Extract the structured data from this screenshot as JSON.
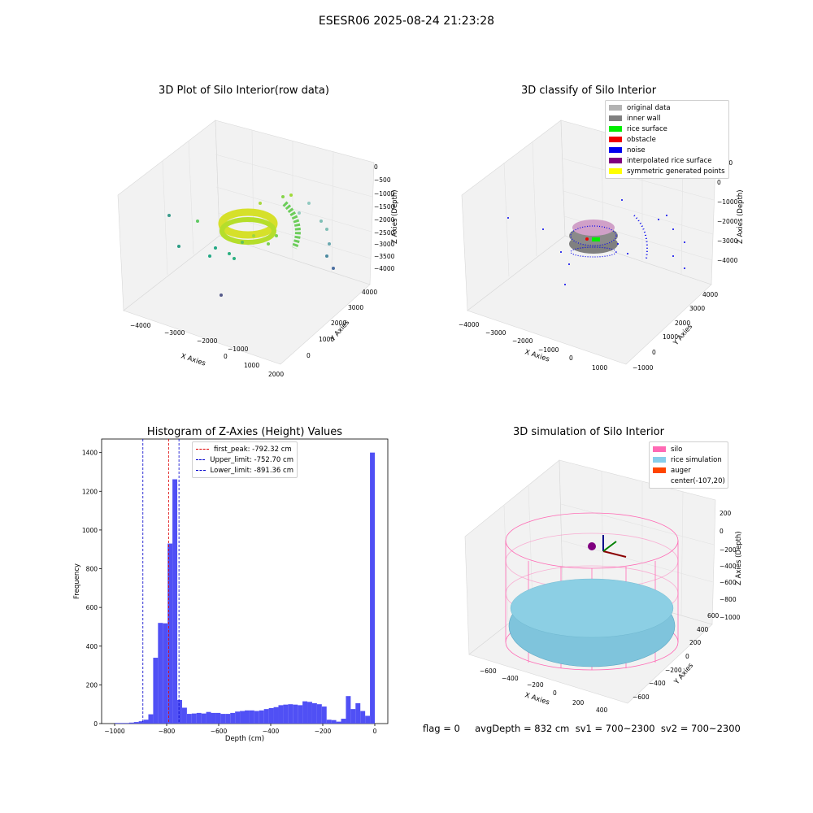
{
  "suptitle": "ESESR06 2025-08-24 21:23:28",
  "panels": {
    "raw": {
      "title": "3D Plot of Silo Interior(row data)",
      "xlabel": "X Axies",
      "ylabel": "Y Axies",
      "zlabel": "Z Axies (Depth)",
      "xticks": [
        "−4000",
        "−3000",
        "−2000",
        "−1000",
        "0",
        "1000",
        "2000"
      ],
      "yticks": [
        "0",
        "1000",
        "2000",
        "3000",
        "4000"
      ],
      "zticks": [
        "0",
        "−500",
        "−1000",
        "−1500",
        "−2000",
        "−2500",
        "−3000",
        "−3500",
        "−4000"
      ]
    },
    "classify": {
      "title": "3D classify of Silo Interior",
      "xlabel": "X Axies",
      "ylabel": "Y Axies",
      "zlabel": "Z Axies (Depth)",
      "xticks": [
        "−4000",
        "−3000",
        "−2000",
        "−1000",
        "0",
        "1000"
      ],
      "yticks": [
        "−1000",
        "0",
        "1000",
        "2000",
        "3000",
        "4000"
      ],
      "zticks": [
        "1000",
        "0",
        "−1000",
        "−2000",
        "−3000",
        "−4000"
      ],
      "legend": [
        {
          "label": "original data",
          "color": "#b3b3b3"
        },
        {
          "label": "inner wall",
          "color": "#808080"
        },
        {
          "label": "rice surface",
          "color": "#00ee00"
        },
        {
          "label": "obstacle",
          "color": "#ee0000"
        },
        {
          "label": "noise",
          "color": "#0000ee"
        },
        {
          "label": "interpolated rice surface",
          "color": "#800080"
        },
        {
          "label": "symmetric generated points",
          "color": "#ffff00"
        }
      ]
    },
    "simulation": {
      "title": "3D simulation of Silo Interior",
      "xlabel": "X Axies",
      "ylabel": "Y Axies",
      "zlabel": "Z Axies (Depth)",
      "xticks": [
        "−600",
        "−400",
        "−200",
        "0",
        "200",
        "400"
      ],
      "yticks": [
        "−600",
        "−400",
        "−200",
        "0",
        "200",
        "400",
        "600"
      ],
      "zticks": [
        "200",
        "0",
        "−200",
        "−400",
        "−600",
        "−800",
        "−1000"
      ],
      "legend": [
        {
          "label": "silo",
          "color": "#ff69b4"
        },
        {
          "label": "rice simulation",
          "color": "#87ceeb"
        },
        {
          "label": "auger",
          "color": "#ff4500"
        },
        {
          "label": "center(-107,20)",
          "color": ""
        }
      ]
    }
  },
  "footer": "flag = 0     avgDepth = 832 cm  sv1 = 700~2300  sv2 = 700~2300",
  "chart_data": [
    {
      "type": "bar",
      "title": "Histogram of Z-Axies (Height) Values",
      "xlabel": "Depth (cm)",
      "ylabel": "Frequency",
      "xlim": [
        -1050,
        50
      ],
      "ylim": [
        0,
        1470
      ],
      "xticks": [
        -1000,
        -800,
        -600,
        -400,
        -200,
        0
      ],
      "xtick_labels": [
        "−1000",
        "−800",
        "−600",
        "−400",
        "−200",
        "0"
      ],
      "yticks": [
        0,
        200,
        400,
        600,
        800,
        1000,
        1200,
        1400
      ],
      "bar_color": "#5050f5",
      "bin_edges": [
        -1000,
        0
      ],
      "values": [
        3,
        3,
        3,
        5,
        8,
        12,
        20,
        48,
        340,
        520,
        518,
        930,
        1262,
        122,
        82,
        50,
        52,
        55,
        52,
        60,
        55,
        55,
        50,
        50,
        55,
        62,
        65,
        68,
        68,
        65,
        68,
        75,
        80,
        85,
        95,
        98,
        100,
        98,
        95,
        115,
        112,
        105,
        100,
        88,
        20,
        18,
        10,
        25,
        142,
        75,
        105,
        65,
        40,
        1400
      ],
      "vlines": [
        {
          "x": -792.32,
          "label": "first_peak: -792.32 cm",
          "color": "#dd0000"
        },
        {
          "x": -752.7,
          "label": "Upper_limit: -752.70 cm",
          "color": "#0000cc"
        },
        {
          "x": -891.36,
          "label": "Lower_limit: -891.36 cm",
          "color": "#0000cc"
        }
      ]
    }
  ]
}
